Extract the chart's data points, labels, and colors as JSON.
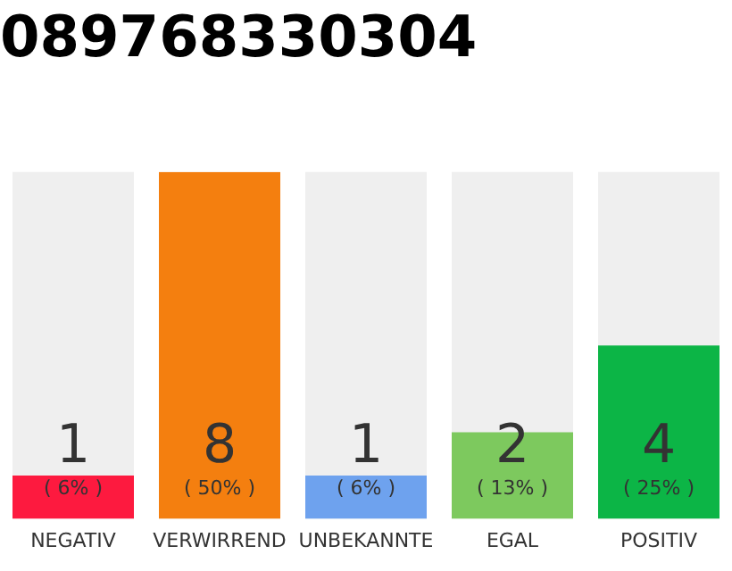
{
  "chart_data": {
    "type": "bar",
    "title": "089768330304",
    "categories": [
      "NEGATIV",
      "VERWIRREND",
      "UNBEKANNTE",
      "EGAL",
      "POSITIV"
    ],
    "values": [
      1,
      8,
      1,
      2,
      4
    ],
    "colors": [
      "#fd1a3f",
      "#f47f0f",
      "#6ea2ee",
      "#7dc95e",
      "#0cb546"
    ],
    "data_labels": true,
    "annotations": [
      "( 6% )",
      "( 50% )",
      "( 6% )",
      "( 13% )",
      "( 25% )"
    ],
    "tick_labels": "x",
    "legend": false
  }
}
